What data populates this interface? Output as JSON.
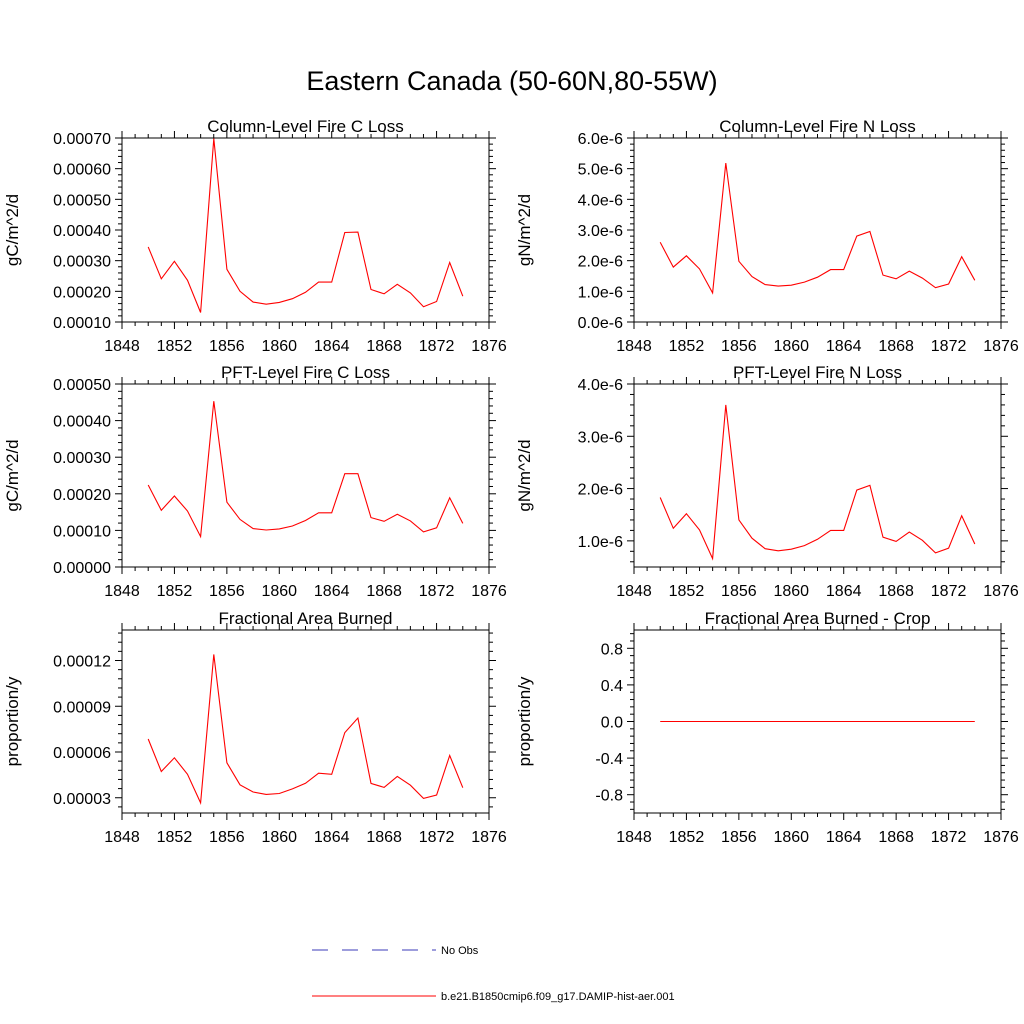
{
  "figure": {
    "title": "Eastern Canada (50-60N,80-55W)"
  },
  "legend": {
    "placement": "bottom-center",
    "entries": [
      {
        "label": "No Obs",
        "color": "#3b3bb8",
        "style": "dashed"
      },
      {
        "label": "b.e21.B1850cmip6.f09_g17.DAMIP-hist-aer.001",
        "color": "#ff0000",
        "style": "solid"
      }
    ]
  },
  "chart_data": [
    {
      "type": "line",
      "title": "Column-Level Fire C Loss",
      "xlabel": "",
      "ylabel": "gC/m^2/d",
      "xlim": [
        1848,
        1876
      ],
      "ylim": [
        0.0001,
        0.0007
      ],
      "xticks": [
        1848,
        1852,
        1856,
        1860,
        1864,
        1868,
        1872,
        1876
      ],
      "xtick_labels": [
        "1848",
        "1852",
        "1856",
        "1860",
        "1864",
        "1868",
        "1872",
        "1876"
      ],
      "yticks": [
        0.0001,
        0.0002,
        0.0003,
        0.0004,
        0.0005,
        0.0006,
        0.0007
      ],
      "ytick_labels": [
        "0.00010",
        "0.00020",
        "0.00030",
        "0.00040",
        "0.00050",
        "0.00060",
        "0.00070"
      ],
      "x": [
        1850,
        1851,
        1852,
        1853,
        1854,
        1855,
        1856,
        1857,
        1858,
        1859,
        1860,
        1861,
        1862,
        1863,
        1864,
        1865,
        1866,
        1867,
        1868,
        1869,
        1870,
        1871,
        1872,
        1873,
        1874
      ],
      "series": [
        {
          "color": "#ff0000",
          "values": [
            0.000345,
            0.000241,
            0.000298,
            0.000236,
            0.000131,
            0.000698,
            0.000272,
            0.0002,
            0.000165,
            0.000158,
            0.000164,
            0.000176,
            0.000197,
            0.00023,
            0.00023,
            0.000392,
            0.000393,
            0.000206,
            0.000192,
            0.000223,
            0.000195,
            0.00015,
            0.000167,
            0.000294,
            0.000184
          ]
        }
      ]
    },
    {
      "type": "line",
      "title": "Column-Level Fire N Loss",
      "xlabel": "",
      "ylabel": "gN/m^2/d",
      "xlim": [
        1848,
        1876
      ],
      "ylim": [
        0,
        6e-06
      ],
      "xticks": [
        1848,
        1852,
        1856,
        1860,
        1864,
        1868,
        1872,
        1876
      ],
      "xtick_labels": [
        "1848",
        "1852",
        "1856",
        "1860",
        "1864",
        "1868",
        "1872",
        "1876"
      ],
      "yticks": [
        0,
        1e-06,
        2e-06,
        3e-06,
        4e-06,
        5e-06,
        6e-06
      ],
      "ytick_labels": [
        "0.0e-6",
        "1.0e-6",
        "2.0e-6",
        "3.0e-6",
        "4.0e-6",
        "5.0e-6",
        "6.0e-6"
      ],
      "x": [
        1850,
        1851,
        1852,
        1853,
        1854,
        1855,
        1856,
        1857,
        1858,
        1859,
        1860,
        1861,
        1862,
        1863,
        1864,
        1865,
        1866,
        1867,
        1868,
        1869,
        1870,
        1871,
        1872,
        1873,
        1874
      ],
      "series": [
        {
          "color": "#ff0000",
          "values": [
            2.6e-06,
            1.79e-06,
            2.16e-06,
            1.73e-06,
            9.5e-07,
            5.18e-06,
            1.98e-06,
            1.48e-06,
            1.22e-06,
            1.17e-06,
            1.2e-06,
            1.3e-06,
            1.46e-06,
            1.71e-06,
            1.71e-06,
            2.8e-06,
            2.95e-06,
            1.53e-06,
            1.41e-06,
            1.66e-06,
            1.43e-06,
            1.12e-06,
            1.24e-06,
            2.13e-06,
            1.36e-06
          ]
        }
      ]
    },
    {
      "type": "line",
      "title": "PFT-Level Fire C Loss",
      "xlabel": "",
      "ylabel": "gC/m^2/d",
      "xlim": [
        1848,
        1876
      ],
      "ylim": [
        0,
        0.0005
      ],
      "xticks": [
        1848,
        1852,
        1856,
        1860,
        1864,
        1868,
        1872,
        1876
      ],
      "xtick_labels": [
        "1848",
        "1852",
        "1856",
        "1860",
        "1864",
        "1868",
        "1872",
        "1876"
      ],
      "yticks": [
        0,
        0.0001,
        0.0002,
        0.0003,
        0.0004,
        0.0005
      ],
      "ytick_labels": [
        "0.00000",
        "0.00010",
        "0.00020",
        "0.00030",
        "0.00040",
        "0.00050"
      ],
      "x": [
        1850,
        1851,
        1852,
        1853,
        1854,
        1855,
        1856,
        1857,
        1858,
        1859,
        1860,
        1861,
        1862,
        1863,
        1864,
        1865,
        1866,
        1867,
        1868,
        1869,
        1870,
        1871,
        1872,
        1873,
        1874
      ],
      "series": [
        {
          "color": "#ff0000",
          "values": [
            0.000224,
            0.000155,
            0.000194,
            0.000153,
            8.3e-05,
            0.000453,
            0.000177,
            0.00013,
            0.000105,
            0.000101,
            0.000104,
            0.000112,
            0.000127,
            0.000148,
            0.000148,
            0.000255,
            0.000255,
            0.000135,
            0.000125,
            0.000144,
            0.000126,
            9.6e-05,
            0.000107,
            0.000189,
            0.000119
          ]
        }
      ]
    },
    {
      "type": "line",
      "title": "PFT-Level Fire N Loss",
      "xlabel": "",
      "ylabel": "gN/m^2/d",
      "xlim": [
        1848,
        1876
      ],
      "ylim": [
        5e-07,
        4e-06
      ],
      "xticks": [
        1848,
        1852,
        1856,
        1860,
        1864,
        1868,
        1872,
        1876
      ],
      "xtick_labels": [
        "1848",
        "1852",
        "1856",
        "1860",
        "1864",
        "1868",
        "1872",
        "1876"
      ],
      "yticks": [
        1e-06,
        2e-06,
        3e-06,
        4e-06
      ],
      "ytick_labels": [
        "1.0e-6",
        "2.0e-6",
        "3.0e-6",
        "4.0e-6"
      ],
      "x": [
        1850,
        1851,
        1852,
        1853,
        1854,
        1855,
        1856,
        1857,
        1858,
        1859,
        1860,
        1861,
        1862,
        1863,
        1864,
        1865,
        1866,
        1867,
        1868,
        1869,
        1870,
        1871,
        1872,
        1873,
        1874
      ],
      "series": [
        {
          "color": "#ff0000",
          "values": [
            1.83e-06,
            1.24e-06,
            1.52e-06,
            1.21e-06,
            6.6e-07,
            3.6e-06,
            1.4e-06,
            1.05e-06,
            8.5e-07,
            8.1e-07,
            8.4e-07,
            9.1e-07,
            1.03e-06,
            1.2e-06,
            1.2e-06,
            1.97e-06,
            2.06e-06,
            1.07e-06,
            9.9e-07,
            1.17e-06,
            1.01e-06,
            7.7e-07,
            8.6e-07,
            1.48e-06,
            9.4e-07
          ]
        }
      ]
    },
    {
      "type": "line",
      "title": "Fractional Area Burned",
      "xlabel": "",
      "ylabel": "proportion/y",
      "xlim": [
        1848,
        1876
      ],
      "ylim": [
        2e-05,
        0.00014
      ],
      "xticks": [
        1848,
        1852,
        1856,
        1860,
        1864,
        1868,
        1872,
        1876
      ],
      "xtick_labels": [
        "1848",
        "1852",
        "1856",
        "1860",
        "1864",
        "1868",
        "1872",
        "1876"
      ],
      "yticks": [
        3e-05,
        6e-05,
        9e-05,
        0.00012
      ],
      "ytick_labels": [
        "0.00003",
        "0.00006",
        "0.00009",
        "0.00012"
      ],
      "x": [
        1850,
        1851,
        1852,
        1853,
        1854,
        1855,
        1856,
        1857,
        1858,
        1859,
        1860,
        1861,
        1862,
        1863,
        1864,
        1865,
        1866,
        1867,
        1868,
        1869,
        1870,
        1871,
        1872,
        1873,
        1874
      ],
      "series": [
        {
          "color": "#ff0000",
          "values": [
            6.85e-05,
            4.72e-05,
            5.62e-05,
            4.54e-05,
            2.66e-05,
            0.000124,
            5.29e-05,
            3.85e-05,
            3.38e-05,
            3.22e-05,
            3.28e-05,
            3.58e-05,
            3.95e-05,
            4.61e-05,
            4.54e-05,
            7.27e-05,
            8.23e-05,
            3.94e-05,
            3.68e-05,
            4.4e-05,
            3.82e-05,
            2.96e-05,
            3.18e-05,
            5.77e-05,
            3.66e-05
          ]
        }
      ]
    },
    {
      "type": "line",
      "title": "Fractional Area Burned - Crop",
      "xlabel": "",
      "ylabel": "proportion/y",
      "xlim": [
        1848,
        1876
      ],
      "ylim": [
        -1.0,
        1.0
      ],
      "xticks": [
        1848,
        1852,
        1856,
        1860,
        1864,
        1868,
        1872,
        1876
      ],
      "xtick_labels": [
        "1848",
        "1852",
        "1856",
        "1860",
        "1864",
        "1868",
        "1872",
        "1876"
      ],
      "yticks": [
        -0.8,
        -0.4,
        0.0,
        0.4,
        0.8
      ],
      "ytick_labels": [
        "-0.8",
        "-0.4",
        "0.0",
        "0.4",
        "0.8"
      ],
      "x": [
        1850,
        1851,
        1852,
        1853,
        1854,
        1855,
        1856,
        1857,
        1858,
        1859,
        1860,
        1861,
        1862,
        1863,
        1864,
        1865,
        1866,
        1867,
        1868,
        1869,
        1870,
        1871,
        1872,
        1873,
        1874
      ],
      "series": [
        {
          "color": "#ff0000",
          "values": [
            0,
            0,
            0,
            0,
            0,
            0,
            0,
            0,
            0,
            0,
            0,
            0,
            0,
            0,
            0,
            0,
            0,
            0,
            0,
            0,
            0,
            0,
            0,
            0,
            0
          ]
        }
      ]
    }
  ]
}
